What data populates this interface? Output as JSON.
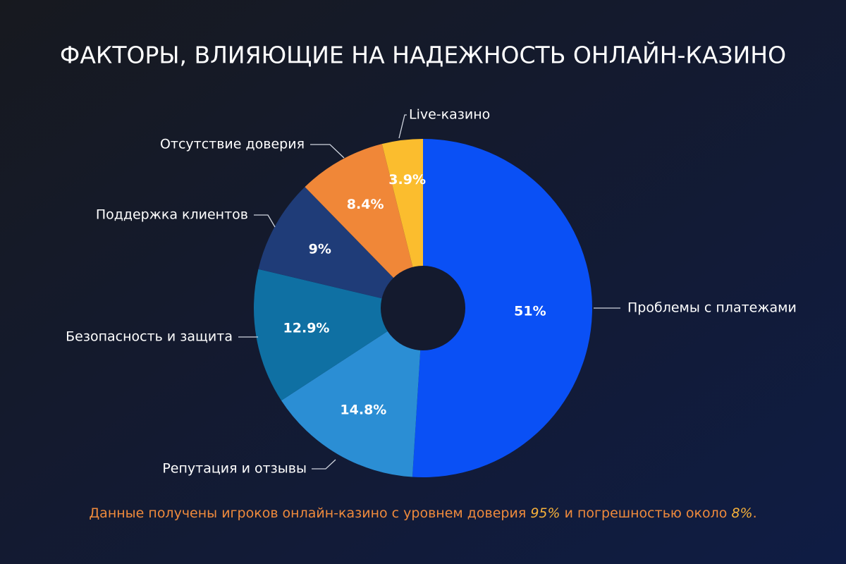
{
  "chart_data": {
    "type": "pie",
    "title": "ФАКТОРЫ, ВЛИЯЮЩИЕ НА НАДЕЖНОСТЬ ОНЛАЙН-КАЗИНО",
    "categories": [
      "Проблемы с платежами",
      "Репутация и отзывы",
      "Безопасность и защита",
      "Поддержка клиентов",
      "Отсутствие доверия",
      "Live-казино"
    ],
    "values": [
      51,
      14.8,
      12.9,
      9,
      8.4,
      3.9
    ],
    "value_labels": [
      "51%",
      "14.8%",
      "12.9%",
      "9%",
      "8.4%",
      "3.9%"
    ],
    "colors": [
      "#0a50f5",
      "#2b8ed4",
      "#0f70a3",
      "#1f3c78",
      "#f08738",
      "#fbbd2e"
    ],
    "note": [
      "Данные получены игроков онлайн-казино с уровнем доверия ",
      "95%",
      " и погрешностью около ",
      "8%",
      "."
    ]
  }
}
